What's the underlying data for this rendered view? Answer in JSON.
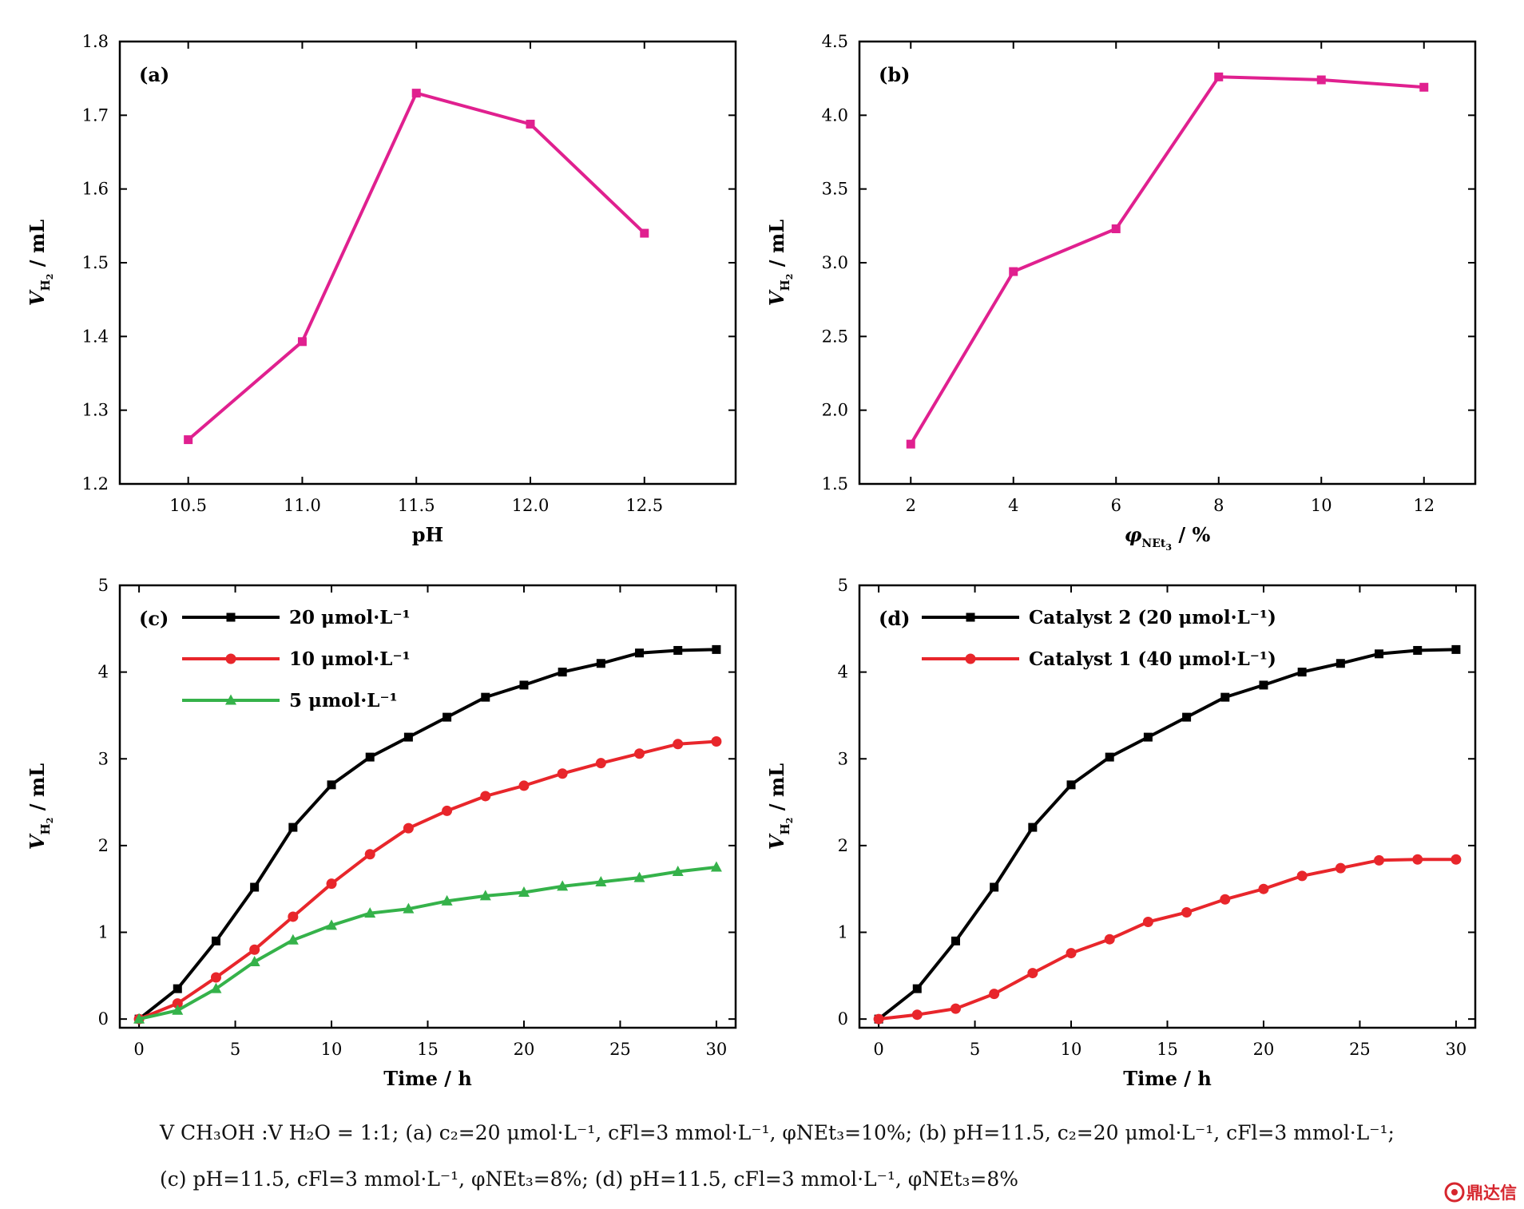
{
  "chart_data": [
    {
      "type": "line",
      "panel": "(a)",
      "xlabel": "pH",
      "ylabel": "V_H2 / mL",
      "xlim": [
        10.2,
        12.9
      ],
      "ylim": [
        1.2,
        1.8
      ],
      "xticks": [
        "10.5",
        "11.0",
        "11.5",
        "12.0",
        "12.5"
      ],
      "yticks": [
        "1.2",
        "1.3",
        "1.4",
        "1.5",
        "1.6",
        "1.7",
        "1.8"
      ],
      "legend": "none",
      "series": [
        {
          "color": "#e0208f",
          "marker": "square",
          "x": [
            10.5,
            11.0,
            11.5,
            12.0,
            12.5
          ],
          "y": [
            1.26,
            1.393,
            1.73,
            1.688,
            1.54
          ]
        }
      ]
    },
    {
      "type": "line",
      "panel": "(b)",
      "xlabel": "φ_NEt3 / %",
      "ylabel": "V_H2 / mL",
      "xlim": [
        1,
        13
      ],
      "ylim": [
        1.5,
        4.5
      ],
      "xticks": [
        "2",
        "4",
        "6",
        "8",
        "10",
        "12"
      ],
      "yticks": [
        "1.5",
        "2.0",
        "2.5",
        "3.0",
        "3.5",
        "4.0",
        "4.5"
      ],
      "legend": "none",
      "series": [
        {
          "color": "#e0208f",
          "marker": "square",
          "x": [
            2,
            4,
            6,
            8,
            10,
            12
          ],
          "y": [
            1.77,
            2.94,
            3.23,
            4.26,
            4.24,
            4.19
          ]
        }
      ]
    },
    {
      "type": "line",
      "panel": "(c)",
      "xlabel": "Time / h",
      "ylabel": "V_H2 / mL",
      "xlim": [
        -1,
        31
      ],
      "ylim": [
        -0.1,
        5
      ],
      "xticks": [
        "0",
        "5",
        "10",
        "15",
        "20",
        "25",
        "30"
      ],
      "yticks": [
        "0",
        "1",
        "2",
        "3",
        "4",
        "5"
      ],
      "legend": "top-left",
      "x": [
        0,
        2,
        4,
        6,
        8,
        10,
        12,
        14,
        16,
        18,
        20,
        22,
        24,
        26,
        28,
        30
      ],
      "series": [
        {
          "name": "20 μmol·L⁻¹",
          "color": "#000000",
          "marker": "square",
          "values": [
            0.0,
            0.35,
            0.9,
            1.52,
            2.21,
            2.7,
            3.02,
            3.25,
            3.48,
            3.71,
            3.85,
            4.0,
            4.1,
            4.22,
            4.25,
            4.26
          ]
        },
        {
          "name": "10 μmol·L⁻¹",
          "color": "#e8262b",
          "marker": "circle",
          "values": [
            0.0,
            0.18,
            0.48,
            0.8,
            1.18,
            1.56,
            1.9,
            2.2,
            2.4,
            2.57,
            2.69,
            2.83,
            2.95,
            3.06,
            3.17,
            3.2
          ]
        },
        {
          "name": "5 μmol·L⁻¹",
          "color": "#35b24a",
          "marker": "triangle",
          "values": [
            0.0,
            0.1,
            0.35,
            0.66,
            0.91,
            1.08,
            1.22,
            1.27,
            1.36,
            1.42,
            1.46,
            1.53,
            1.58,
            1.63,
            1.7,
            1.75
          ]
        }
      ]
    },
    {
      "type": "line",
      "panel": "(d)",
      "xlabel": "Time / h",
      "ylabel": "V_H2 / mL",
      "xlim": [
        -1,
        31
      ],
      "ylim": [
        -0.1,
        5
      ],
      "xticks": [
        "0",
        "5",
        "10",
        "15",
        "20",
        "25",
        "30"
      ],
      "yticks": [
        "0",
        "1",
        "2",
        "3",
        "4",
        "5"
      ],
      "legend": "top-left",
      "x": [
        0,
        2,
        4,
        6,
        8,
        10,
        12,
        14,
        16,
        18,
        20,
        22,
        24,
        26,
        28,
        30
      ],
      "series": [
        {
          "name": "Catalyst 2 (20 μmol·L⁻¹)",
          "color": "#000000",
          "marker": "square",
          "values": [
            0.0,
            0.35,
            0.9,
            1.52,
            2.21,
            2.7,
            3.02,
            3.25,
            3.48,
            3.71,
            3.85,
            4.0,
            4.1,
            4.21,
            4.25,
            4.26
          ]
        },
        {
          "name": "Catalyst 1 (40 μmol·L⁻¹)",
          "color": "#e8262b",
          "marker": "circle",
          "values": [
            0.0,
            0.05,
            0.12,
            0.29,
            0.53,
            0.76,
            0.92,
            1.12,
            1.23,
            1.38,
            1.5,
            1.65,
            1.74,
            1.83,
            1.84,
            1.84
          ]
        }
      ]
    }
  ],
  "caption": {
    "line1": "V CH₃OH :V H₂O = 1:1; (a) c₂=20 μmol·L⁻¹, cFl=3 mmol·L⁻¹, φNEt₃=10%; (b) pH=11.5, c₂=20 μmol·L⁻¹, cFl=3 mmol·L⁻¹;",
    "line2": "(c) pH=11.5, cFl=3 mmol·L⁻¹, φNEt₃=8%; (d) pH=11.5, cFl=3 mmol·L⁻¹, φNEt₃=8%"
  },
  "watermark": {
    "text": "鼎达信",
    "color": "#d6262e"
  }
}
